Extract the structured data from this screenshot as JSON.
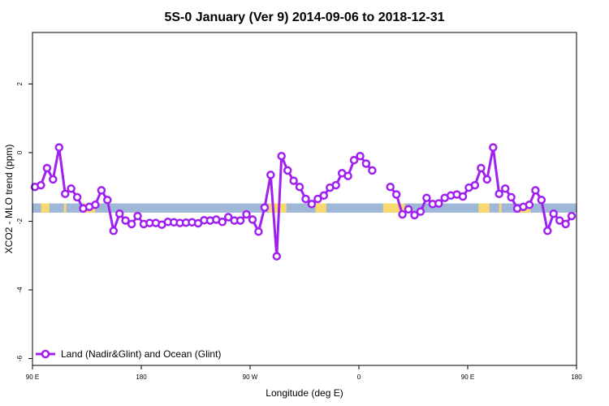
{
  "chart_data": {
    "type": "line",
    "title": "5S-0 January (Ver 9)   2014-09-06 to 2018-12-31",
    "xlabel": "Longitude (deg E)",
    "ylabel": "XCO2 - MLO trend (ppm)",
    "xlim": [
      90,
      540
    ],
    "ylim": [
      -6.2,
      3.5
    ],
    "x_ticks": [
      {
        "value": 90,
        "label": "90 E"
      },
      {
        "value": 180,
        "label": "180"
      },
      {
        "value": 270,
        "label": "90 W"
      },
      {
        "value": 360,
        "label": "0"
      },
      {
        "value": 450,
        "label": "90 E"
      },
      {
        "value": 540,
        "label": "180"
      }
    ],
    "y_ticks": [
      {
        "value": 2,
        "label": "2"
      },
      {
        "value": 0,
        "label": "0"
      },
      {
        "value": -2,
        "label": "-2"
      },
      {
        "value": -4,
        "label": "-4"
      },
      {
        "value": -6,
        "label": "-6"
      }
    ],
    "grid": false,
    "legend": {
      "position": "bottom-left",
      "label": "Land (Nadir&Glint) and Ocean (Glint)"
    },
    "colors": {
      "series": "#a020f0",
      "ocean": "#9fb8d8",
      "land": "#f8d870"
    },
    "land_ocean_band": {
      "y_range": [
        -1.75,
        -1.48
      ],
      "land_segments": [
        [
          97,
          104
        ],
        [
          116,
          118
        ],
        [
          133,
          142
        ],
        [
          285,
          300
        ],
        [
          324,
          333
        ],
        [
          380,
          398
        ],
        [
          459,
          468
        ],
        [
          476,
          478
        ],
        [
          493,
          502
        ]
      ]
    },
    "series": [
      {
        "name": "Land (Nadir&Glint) and Ocean (Glint)",
        "segments": [
          [
            [
              92,
              -1.0
            ],
            [
              97,
              -0.95
            ],
            [
              102,
              -0.45
            ],
            [
              107,
              -0.78
            ],
            [
              112,
              0.15
            ],
            [
              117,
              -1.2
            ],
            [
              122,
              -1.05
            ],
            [
              127,
              -1.3
            ],
            [
              132,
              -1.63
            ],
            [
              137,
              -1.58
            ],
            [
              142,
              -1.52
            ],
            [
              147,
              -1.1
            ],
            [
              152,
              -1.38
            ],
            [
              157,
              -2.28
            ],
            [
              162,
              -1.78
            ],
            [
              167,
              -1.98
            ],
            [
              172,
              -2.08
            ],
            [
              177,
              -1.85
            ],
            [
              182,
              -2.08
            ],
            [
              187,
              -2.05
            ],
            [
              192,
              -2.05
            ],
            [
              197,
              -2.1
            ],
            [
              202,
              -2.02
            ],
            [
              207,
              -2.03
            ],
            [
              212,
              -2.05
            ],
            [
              217,
              -2.04
            ],
            [
              222,
              -2.03
            ],
            [
              227,
              -2.06
            ],
            [
              232,
              -1.97
            ],
            [
              237,
              -1.98
            ],
            [
              242,
              -1.95
            ],
            [
              247,
              -2.02
            ],
            [
              252,
              -1.88
            ],
            [
              257,
              -1.98
            ],
            [
              262,
              -1.98
            ],
            [
              267,
              -1.8
            ],
            [
              272,
              -1.95
            ],
            [
              277,
              -2.3
            ],
            [
              282,
              -1.6
            ],
            [
              287,
              -0.65
            ],
            [
              292,
              -3.02
            ],
            [
              296,
              -0.1
            ],
            [
              301,
              -0.52
            ],
            [
              306,
              -0.82
            ],
            [
              311,
              -1.0
            ],
            [
              316,
              -1.35
            ],
            [
              321,
              -1.5
            ],
            [
              326,
              -1.35
            ],
            [
              331,
              -1.25
            ],
            [
              336,
              -1.02
            ],
            [
              341,
              -0.95
            ],
            [
              346,
              -0.6
            ],
            [
              351,
              -0.68
            ],
            [
              356,
              -0.22
            ],
            [
              361,
              -0.1
            ],
            [
              366,
              -0.32
            ],
            [
              371,
              -0.52
            ]
          ],
          [
            [
              386,
              -1.0
            ],
            [
              391,
              -1.22
            ],
            [
              396,
              -1.8
            ],
            [
              401,
              -1.65
            ],
            [
              406,
              -1.82
            ],
            [
              411,
              -1.72
            ],
            [
              416,
              -1.32
            ],
            [
              421,
              -1.5
            ],
            [
              426,
              -1.48
            ],
            [
              431,
              -1.32
            ],
            [
              436,
              -1.25
            ],
            [
              441,
              -1.22
            ],
            [
              446,
              -1.28
            ],
            [
              451,
              -1.02
            ],
            [
              456,
              -0.95
            ],
            [
              461,
              -0.45
            ],
            [
              466,
              -0.78
            ],
            [
              471,
              0.15
            ],
            [
              476,
              -1.2
            ],
            [
              481,
              -1.05
            ],
            [
              486,
              -1.3
            ],
            [
              491,
              -1.63
            ],
            [
              496,
              -1.58
            ],
            [
              501,
              -1.52
            ],
            [
              506,
              -1.1
            ],
            [
              511,
              -1.38
            ],
            [
              516,
              -2.28
            ],
            [
              521,
              -1.78
            ],
            [
              526,
              -1.98
            ],
            [
              531,
              -2.08
            ],
            [
              536,
              -1.85
            ]
          ]
        ]
      }
    ]
  }
}
